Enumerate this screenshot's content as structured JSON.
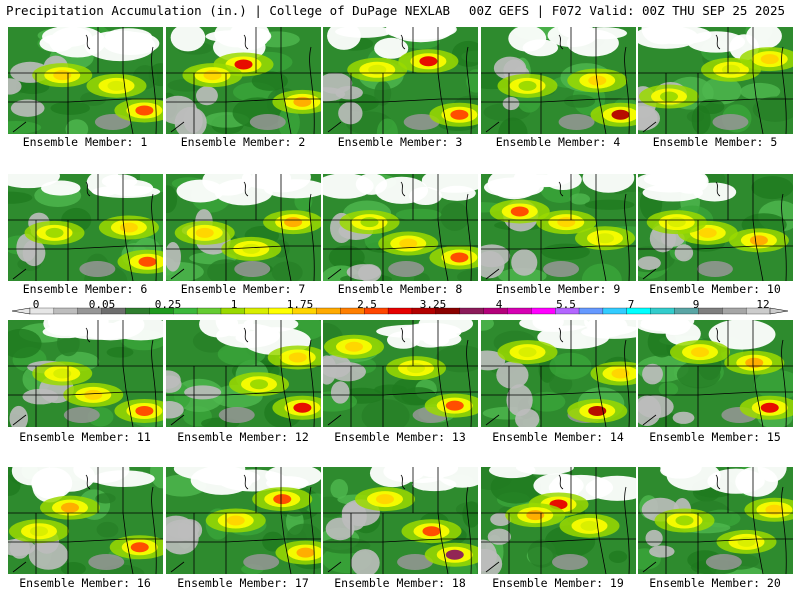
{
  "header": {
    "left": "Precipitation Accumulation (in.) | College of DuPage NEXLAB",
    "right": "00Z GEFS | F072 Valid: 00Z THU SEP 25 2025"
  },
  "panel_label_prefix": "Ensemble Member: ",
  "members": [
    {
      "id": "1",
      "label": "Ensemble Member: 1"
    },
    {
      "id": "2",
      "label": "Ensemble Member: 2"
    },
    {
      "id": "3",
      "label": "Ensemble Member: 3"
    },
    {
      "id": "4",
      "label": "Ensemble Member: 4"
    },
    {
      "id": "5",
      "label": "Ensemble Member: 5"
    },
    {
      "id": "6",
      "label": "Ensemble Member: 6"
    },
    {
      "id": "7",
      "label": "Ensemble Member: 7"
    },
    {
      "id": "8",
      "label": "Ensemble Member: 8"
    },
    {
      "id": "9",
      "label": "Ensemble Member: 9"
    },
    {
      "id": "10",
      "label": "Ensemble Member: 10"
    },
    {
      "id": "11",
      "label": "Ensemble Member: 11"
    },
    {
      "id": "12",
      "label": "Ensemble Member: 12"
    },
    {
      "id": "13",
      "label": "Ensemble Member: 13"
    },
    {
      "id": "14",
      "label": "Ensemble Member: 14"
    },
    {
      "id": "15",
      "label": "Ensemble Member: 15"
    },
    {
      "id": "16",
      "label": "Ensemble Member: 16"
    },
    {
      "id": "17",
      "label": "Ensemble Member: 17"
    },
    {
      "id": "18",
      "label": "Ensemble Member: 18"
    },
    {
      "id": "19",
      "label": "Ensemble Member: 19"
    },
    {
      "id": "20",
      "label": "Ensemble Member: 20"
    }
  ],
  "colorbar": {
    "tick_labels": [
      "0",
      "0.05",
      "0.25",
      "1",
      "1.75",
      "2.5",
      "3.25",
      "4",
      "5.5",
      "7",
      "9",
      "12"
    ],
    "colors": [
      "#e6e6e6",
      "#bdbdbd",
      "#969696",
      "#6e6e6e",
      "#2f7f2f",
      "#1f9a1f",
      "#3cb83c",
      "#66cc33",
      "#9ad900",
      "#d8ee00",
      "#ffff00",
      "#ffd400",
      "#ffaa00",
      "#ff7f00",
      "#ff4500",
      "#e60000",
      "#b30000",
      "#8a0000",
      "#8c1a5a",
      "#b3007a",
      "#d600b3",
      "#ff00ff",
      "#b366ff",
      "#6699ff",
      "#33ccff",
      "#00ffff",
      "#33cccc",
      "#5aa5a5",
      "#7f7f7f",
      "#a6a6a6",
      "#cccccc"
    ]
  }
}
